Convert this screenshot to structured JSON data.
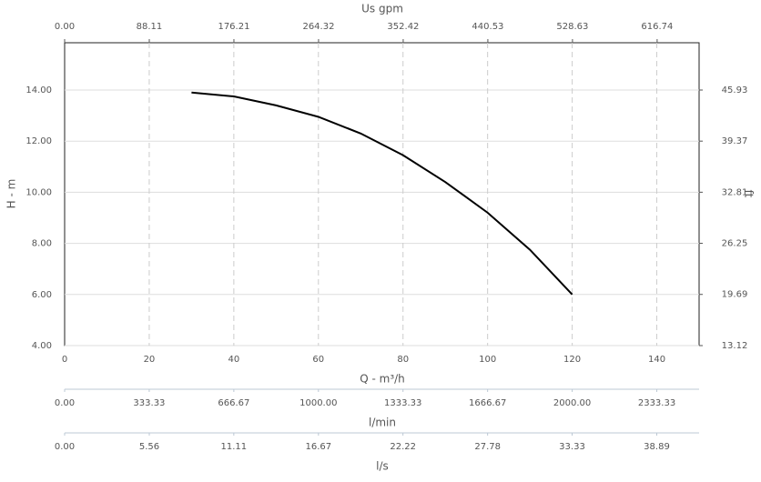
{
  "chart_data": {
    "type": "line",
    "x_label": "Q - m³/h",
    "y_label": "H - m",
    "y2_label": "ft",
    "x": [
      30,
      40,
      50,
      60,
      70,
      80,
      90,
      100,
      110,
      120
    ],
    "series": [
      {
        "color": "#000000",
        "values": [
          13.9,
          13.75,
          13.4,
          12.95,
          12.3,
          11.45,
          10.4,
          9.2,
          7.75,
          6.0
        ]
      }
    ],
    "xlim": [
      0,
      150
    ],
    "xticks": [
      0,
      20,
      40,
      60,
      80,
      100,
      120,
      140
    ],
    "ylim": [
      4,
      15.85
    ],
    "yticks": [
      {
        "value": 4,
        "label": "4.00"
      },
      {
        "value": 6,
        "label": "6.00"
      },
      {
        "value": 8,
        "label": "8.00"
      },
      {
        "value": 10,
        "label": "10.00"
      },
      {
        "value": 12,
        "label": "12.00"
      },
      {
        "value": 14,
        "label": "14.00"
      }
    ],
    "y2lim": [
      13.12,
      52.0
    ],
    "y2ticks": [
      13.12,
      19.69,
      26.25,
      32.81,
      39.37,
      45.93
    ],
    "x2_label": "Us gpm",
    "x2lim": [
      0,
      660.43
    ],
    "x2ticks": [
      {
        "value": 0,
        "label": "0.00"
      },
      88.11,
      176.21,
      264.32,
      352.42,
      440.53,
      528.63,
      616.74
    ],
    "extra_axes": [
      {
        "label": "l/min",
        "lim": [
          0,
          2500
        ],
        "ticks": [
          {
            "value": 0,
            "label": "0.00"
          },
          333.33,
          666.67,
          {
            "value": 1000,
            "label": "1000.00"
          },
          1333.33,
          1666.67,
          {
            "value": 2000,
            "label": "2000.00"
          },
          2333.33
        ]
      },
      {
        "label": "l/s",
        "lim": [
          0,
          41.67
        ],
        "ticks": [
          {
            "value": 0,
            "label": "0.00"
          },
          5.56,
          11.11,
          16.67,
          22.22,
          27.78,
          33.33,
          38.89
        ]
      }
    ],
    "grid": true
  }
}
